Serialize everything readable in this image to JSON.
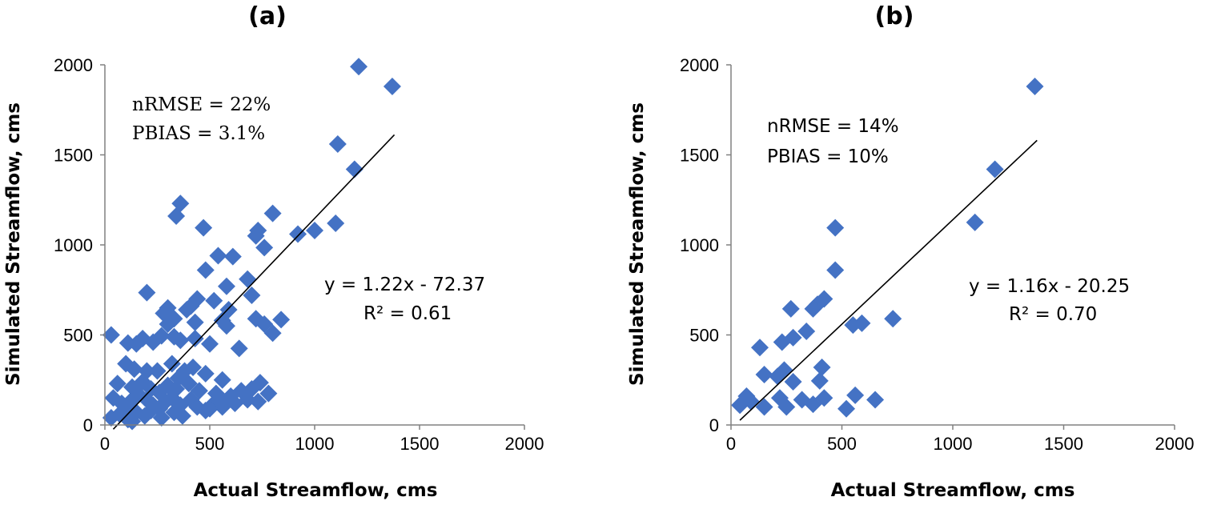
{
  "chart_data": [
    {
      "type": "scatter",
      "title": "(a)",
      "xlabel": "Actual Streamflow, cms",
      "ylabel": "Simulated Streamflow, cms",
      "xlim": [
        0,
        2000
      ],
      "ylim": [
        0,
        2000
      ],
      "xticks": [
        "0",
        "500",
        "1000",
        "1500",
        "2000"
      ],
      "yticks": [
        "0",
        "500",
        "1000",
        "1500",
        "2000"
      ],
      "grid": false,
      "marker_color": "#4472C4",
      "stats": {
        "line1": "nRMSE = 22%",
        "line2": "PBIAS = 3.1%"
      },
      "trendline": {
        "slope": 1.22,
        "intercept": -72.37,
        "x_start": 40,
        "x_end": 1380,
        "equation": "y = 1.22x - 72.37",
        "r2": "R² = 0.61"
      },
      "points": [
        [
          1210,
          1990
        ],
        [
          1370,
          1880
        ],
        [
          1110,
          1560
        ],
        [
          1190,
          1420
        ],
        [
          360,
          1230
        ],
        [
          340,
          1160
        ],
        [
          800,
          1175
        ],
        [
          470,
          1095
        ],
        [
          730,
          1080
        ],
        [
          720,
          1050
        ],
        [
          920,
          1060
        ],
        [
          1000,
          1080
        ],
        [
          1100,
          1120
        ],
        [
          760,
          985
        ],
        [
          540,
          940
        ],
        [
          610,
          935
        ],
        [
          480,
          860
        ],
        [
          680,
          810
        ],
        [
          580,
          770
        ],
        [
          700,
          720
        ],
        [
          200,
          735
        ],
        [
          440,
          700
        ],
        [
          300,
          650
        ],
        [
          410,
          660
        ],
        [
          390,
          640
        ],
        [
          280,
          620
        ],
        [
          520,
          690
        ],
        [
          590,
          640
        ],
        [
          330,
          590
        ],
        [
          300,
          560
        ],
        [
          430,
          570
        ],
        [
          560,
          580
        ],
        [
          580,
          550
        ],
        [
          760,
          560
        ],
        [
          840,
          585
        ],
        [
          800,
          510
        ],
        [
          720,
          590
        ],
        [
          30,
          500
        ],
        [
          110,
          455
        ],
        [
          150,
          450
        ],
        [
          180,
          480
        ],
        [
          230,
          460
        ],
        [
          270,
          495
        ],
        [
          330,
          490
        ],
        [
          360,
          470
        ],
        [
          430,
          480
        ],
        [
          500,
          450
        ],
        [
          640,
          425
        ],
        [
          100,
          340
        ],
        [
          140,
          310
        ],
        [
          200,
          300
        ],
        [
          250,
          300
        ],
        [
          320,
          340
        ],
        [
          350,
          260
        ],
        [
          380,
          300
        ],
        [
          420,
          320
        ],
        [
          480,
          285
        ],
        [
          560,
          250
        ],
        [
          700,
          200
        ],
        [
          740,
          235
        ],
        [
          60,
          230
        ],
        [
          130,
          210
        ],
        [
          180,
          240
        ],
        [
          220,
          200
        ],
        [
          260,
          180
        ],
        [
          300,
          220
        ],
        [
          340,
          200
        ],
        [
          400,
          230
        ],
        [
          450,
          190
        ],
        [
          530,
          175
        ],
        [
          600,
          160
        ],
        [
          650,
          190
        ],
        [
          780,
          175
        ],
        [
          40,
          150
        ],
        [
          80,
          120
        ],
        [
          100,
          90
        ],
        [
          130,
          140
        ],
        [
          160,
          170
        ],
        [
          200,
          140
        ],
        [
          230,
          110
        ],
        [
          260,
          90
        ],
        [
          290,
          130
        ],
        [
          320,
          150
        ],
        [
          360,
          110
        ],
        [
          410,
          140
        ],
        [
          440,
          100
        ],
        [
          480,
          80
        ],
        [
          520,
          120
        ],
        [
          560,
          100
        ],
        [
          620,
          120
        ],
        [
          680,
          140
        ],
        [
          730,
          130
        ],
        [
          30,
          40
        ],
        [
          70,
          60
        ],
        [
          110,
          30
        ],
        [
          150,
          70
        ],
        [
          190,
          50
        ],
        [
          220,
          80
        ],
        [
          270,
          40
        ],
        [
          330,
          70
        ],
        [
          370,
          50
        ],
        [
          500,
          90
        ],
        [
          550,
          130
        ],
        [
          130,
          20
        ]
      ]
    },
    {
      "type": "scatter",
      "title": "(b)",
      "xlabel": "Actual Streamflow, cms",
      "ylabel": "Simulated Streamflow, cms",
      "xlim": [
        0,
        2000
      ],
      "ylim": [
        0,
        2000
      ],
      "xticks": [
        "0",
        "500",
        "1000",
        "1500",
        "2000"
      ],
      "yticks": [
        "0",
        "500",
        "1000",
        "1500",
        "2000"
      ],
      "grid": false,
      "marker_color": "#4472C4",
      "stats": {
        "line1": "nRMSE = 14%",
        "line2": "PBIAS = 10%"
      },
      "trendline": {
        "slope": 1.16,
        "intercept": -20.25,
        "x_start": 40,
        "x_end": 1380,
        "equation": "y = 1.16x - 20.25",
        "r2": "R² = 0.70"
      },
      "points": [
        [
          1370,
          1880
        ],
        [
          1190,
          1420
        ],
        [
          1100,
          1125
        ],
        [
          470,
          1095
        ],
        [
          470,
          860
        ],
        [
          420,
          700
        ],
        [
          390,
          670
        ],
        [
          370,
          645
        ],
        [
          270,
          645
        ],
        [
          730,
          590
        ],
        [
          590,
          565
        ],
        [
          550,
          555
        ],
        [
          340,
          520
        ],
        [
          280,
          485
        ],
        [
          230,
          460
        ],
        [
          130,
          430
        ],
        [
          410,
          320
        ],
        [
          240,
          305
        ],
        [
          150,
          280
        ],
        [
          210,
          270
        ],
        [
          400,
          245
        ],
        [
          280,
          240
        ],
        [
          70,
          160
        ],
        [
          40,
          110
        ],
        [
          90,
          130
        ],
        [
          150,
          100
        ],
        [
          220,
          150
        ],
        [
          250,
          100
        ],
        [
          320,
          140
        ],
        [
          370,
          115
        ],
        [
          420,
          150
        ],
        [
          520,
          90
        ],
        [
          560,
          165
        ],
        [
          650,
          140
        ]
      ]
    }
  ]
}
